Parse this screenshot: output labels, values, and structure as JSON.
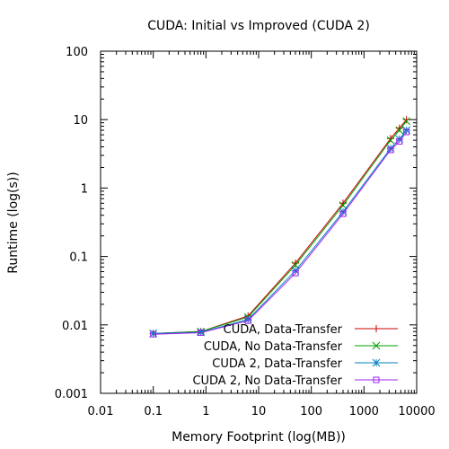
{
  "chart_data": {
    "type": "line",
    "title": "CUDA: Initial vs Improved (CUDA 2)",
    "xlabel": "Memory Footprint (log(MB))",
    "ylabel": "Runtime (log(s))",
    "x_scale": "log",
    "y_scale": "log",
    "xlim": [
      0.01,
      10000
    ],
    "ylim": [
      0.001,
      100
    ],
    "x_ticks": [
      0.01,
      0.1,
      1,
      10,
      100,
      1000,
      10000
    ],
    "x_tick_labels": [
      "0.01",
      "0.1",
      "1",
      "10",
      "100",
      "1000",
      "10000"
    ],
    "y_ticks": [
      0.001,
      0.01,
      0.1,
      1,
      10,
      100
    ],
    "y_tick_labels": [
      "0.001",
      "0.01",
      "0.1",
      "1",
      "10",
      "100"
    ],
    "grid": false,
    "legend_position": "bottom-right",
    "series": [
      {
        "name": "CUDA, Data-Transfer",
        "color": "#cc0000",
        "marker": "plus",
        "x": [
          0.1,
          0.8,
          6.3,
          50,
          400,
          3200,
          4700,
          6400
        ],
        "y": [
          0.0075,
          0.008,
          0.0135,
          0.08,
          0.6,
          5.3,
          7.5,
          10.0
        ]
      },
      {
        "name": "CUDA, No Data-Transfer",
        "color": "#00a000",
        "marker": "cross",
        "x": [
          0.1,
          0.8,
          6.3,
          50,
          400,
          3200,
          4700,
          6400
        ],
        "y": [
          0.0075,
          0.008,
          0.013,
          0.075,
          0.56,
          5.0,
          7.0,
          9.5
        ]
      },
      {
        "name": "CUDA 2, Data-Transfer",
        "color": "#0080c0",
        "marker": "star",
        "x": [
          0.1,
          0.8,
          6.3,
          50,
          400,
          3200,
          4700,
          6400
        ],
        "y": [
          0.0075,
          0.0078,
          0.012,
          0.062,
          0.45,
          3.8,
          5.2,
          7.0
        ]
      },
      {
        "name": "CUDA 2, No Data-Transfer",
        "color": "#a020f0",
        "marker": "square",
        "x": [
          0.1,
          0.8,
          6.3,
          50,
          400,
          3200,
          4700,
          6400
        ],
        "y": [
          0.0073,
          0.0077,
          0.0115,
          0.057,
          0.42,
          3.6,
          4.8,
          6.6
        ]
      }
    ]
  }
}
